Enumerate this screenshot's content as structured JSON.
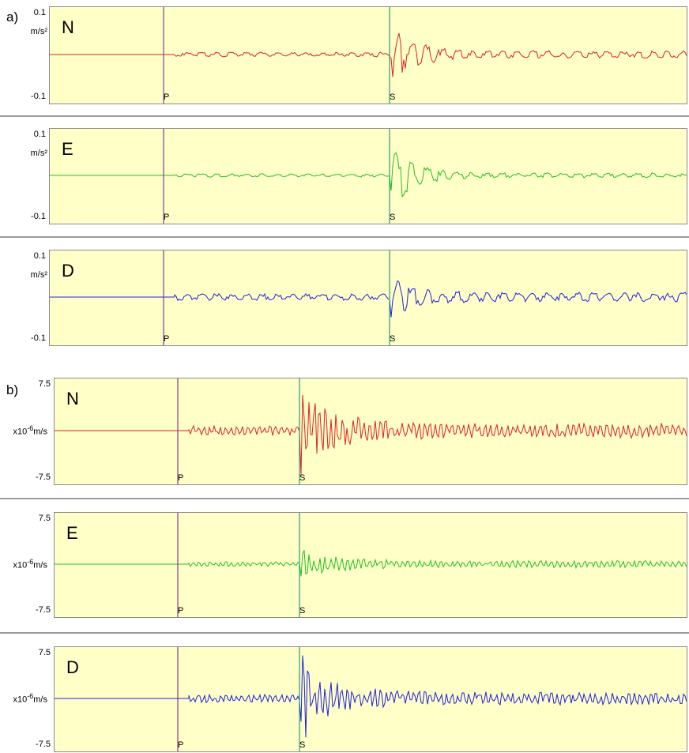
{
  "groups": [
    {
      "label": "a)",
      "ytick_top": "0.1",
      "ytick_bottom": "-0.1",
      "unit": "m/s²",
      "ylim": [
        -0.1,
        0.1
      ],
      "components": [
        {
          "name": "N",
          "color": "#e02020"
        },
        {
          "name": "E",
          "color": "#20c020"
        },
        {
          "name": "D",
          "color": "#2020e0"
        }
      ]
    },
    {
      "label": "b)",
      "ytick_top": "7.5",
      "ytick_bottom": "-7.5",
      "unit_prefix": "x10",
      "unit_exp": "-6",
      "unit_suffix": "m/s",
      "ylim": [
        -7.5,
        7.5
      ],
      "components": [
        {
          "name": "N",
          "color": "#e02020"
        },
        {
          "name": "E",
          "color": "#20c020"
        },
        {
          "name": "D",
          "color": "#2020e0"
        }
      ]
    }
  ],
  "markers": {
    "p_label": "P",
    "s_label": "S",
    "p_color": "#8b3a8b",
    "s_color": "#2a9a7a"
  },
  "chart_data": {
    "type": "line",
    "title": "",
    "series_note": "Three-component seismograms (N, E, D) with P and S arrival markers; a) acceleration, b) velocity",
    "panels": [
      {
        "group": "a)",
        "component": "N",
        "ylim": [
          -0.1,
          0.1
        ],
        "peak": 0.075,
        "noise": 0.006
      },
      {
        "group": "a)",
        "component": "E",
        "ylim": [
          -0.1,
          0.1
        ],
        "peak": 0.085,
        "noise": 0.004
      },
      {
        "group": "a)",
        "component": "D",
        "ylim": [
          -0.1,
          0.1
        ],
        "peak": -0.055,
        "noise": 0.008
      },
      {
        "group": "b)",
        "component": "N",
        "ylim": [
          -7.5,
          7.5
        ],
        "peak": 6.5,
        "noise": 0.8
      },
      {
        "group": "b)",
        "component": "E",
        "ylim": [
          -7.5,
          7.5
        ],
        "peak": 2.0,
        "noise": 0.4
      },
      {
        "group": "b)",
        "component": "D",
        "ylim": [
          -7.5,
          7.5
        ],
        "peak": -7.5,
        "noise": 0.7
      }
    ]
  }
}
